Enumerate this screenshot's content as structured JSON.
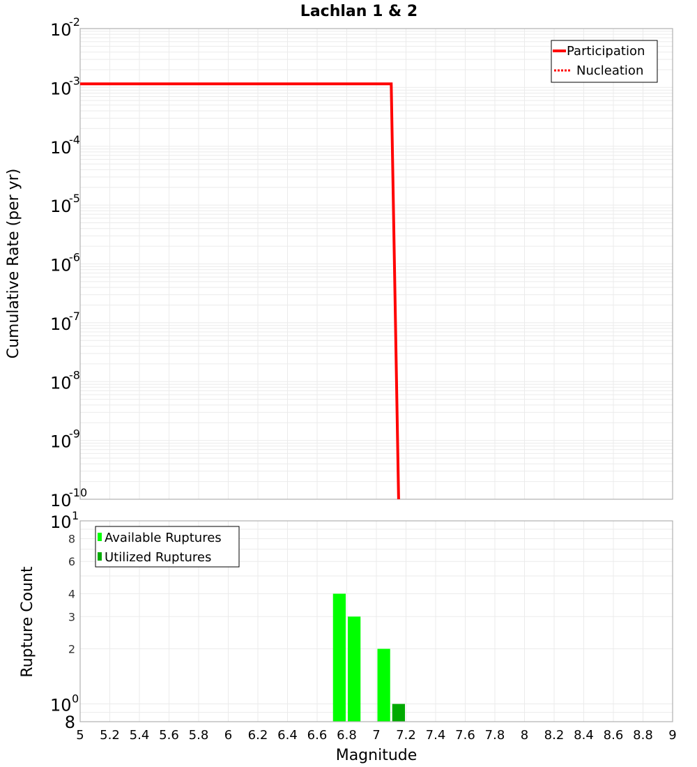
{
  "chart_data": [
    {
      "type": "line",
      "title": "Lachlan 1 & 2",
      "xlabel": "Magnitude",
      "ylabel": "Cumulative Rate (per yr)",
      "xlim": [
        5,
        9
      ],
      "ylim": [
        1e-10,
        0.01
      ],
      "yscale": "log",
      "grid": true,
      "legend_position": "top-right",
      "y_ticks": [
        "10^-2",
        "10^-3",
        "10^-4",
        "10^-5",
        "10^-6",
        "10^-7",
        "10^-8",
        "10^-9",
        "10^-10"
      ],
      "series": [
        {
          "name": "Participation",
          "style": "solid",
          "color": "#ff0000",
          "x": [
            5.0,
            7.1,
            7.15
          ],
          "y": [
            0.00115,
            0.00115,
            1e-10
          ]
        },
        {
          "name": "Nucleation",
          "style": "dotted",
          "color": "#ff0000",
          "x": [
            5.0,
            7.1,
            7.15
          ],
          "y": [
            0.00115,
            0.00115,
            1e-10
          ]
        }
      ]
    },
    {
      "type": "bar",
      "xlabel": "Magnitude",
      "ylabel": "Rupture Count",
      "xlim": [
        5,
        9
      ],
      "ylim": [
        0.8,
        10
      ],
      "yscale": "log",
      "grid": true,
      "legend_position": "top-left",
      "x_ticks": [
        "5",
        "5.2",
        "5.4",
        "5.6",
        "5.8",
        "6",
        "6.2",
        "6.4",
        "6.6",
        "6.8",
        "7",
        "7.2",
        "7.4",
        "7.6",
        "7.8",
        "8",
        "8.2",
        "8.4",
        "8.6",
        "8.8",
        "9"
      ],
      "y_ticks": [
        "8",
        "10^0",
        "2",
        "3",
        "4",
        "6",
        "8",
        "10^1"
      ],
      "series": [
        {
          "name": "Available Ruptures",
          "color": "#00ff00",
          "bins": [
            [
              6.7,
              6.8
            ],
            [
              6.8,
              6.9
            ],
            [
              7.0,
              7.1
            ]
          ],
          "values": [
            4,
            3,
            2
          ]
        },
        {
          "name": "Utilized Ruptures",
          "color": "#00aa00",
          "bins": [
            [
              7.1,
              7.2
            ]
          ],
          "values": [
            1
          ]
        }
      ]
    }
  ],
  "labels": {
    "title": "Lachlan 1 & 2",
    "top_ylabel": "Cumulative Rate (per yr)",
    "bottom_ylabel": "Rupture Count",
    "xlabel": "Magnitude",
    "legend_top": [
      "Participation",
      "Nucleation"
    ],
    "legend_bottom": [
      "Available Ruptures",
      "Utilized Ruptures"
    ]
  },
  "colors": {
    "rate_line": "#ff0000",
    "available": "#00ff00",
    "utilized": "#00aa00",
    "grid": "#ebebeb",
    "frame": "#b0b0b0"
  }
}
